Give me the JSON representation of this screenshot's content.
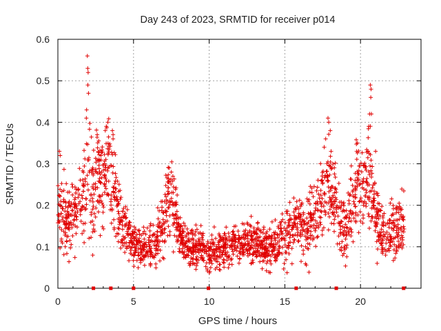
{
  "chart_data": {
    "type": "scatter",
    "title": "Day 243 of 2023, SRMTID for receiver p014",
    "xlabel": "GPS time / hours",
    "ylabel": "SRMTID / TECUs",
    "xlim": [
      0,
      24
    ],
    "ylim": [
      0,
      0.6
    ],
    "xticks": [
      0,
      5,
      10,
      15,
      20
    ],
    "xtick_labels": [
      "0",
      "5",
      "10",
      "15",
      "20"
    ],
    "yticks": [
      0,
      0.1,
      0.2,
      0.3,
      0.4,
      0.5,
      0.6
    ],
    "ytick_labels": [
      "0",
      "0.1",
      "0.2",
      "0.3",
      "0.4",
      "0.5",
      "0.6"
    ],
    "grid": true,
    "marker": "+",
    "color": "#e00000",
    "gap_markers_x": [
      2.35,
      3.5,
      5.0,
      9.95,
      15.75,
      18.4,
      22.85
    ],
    "envelope": {
      "x": [
        0,
        0.3,
        0.6,
        1.0,
        1.5,
        1.8,
        2.0,
        2.3,
        2.6,
        3.0,
        3.3,
        3.6,
        4.0,
        4.5,
        5.0,
        5.5,
        6.0,
        6.5,
        7.0,
        7.3,
        7.6,
        8.0,
        8.5,
        9.0,
        9.5,
        10.0,
        10.5,
        11.0,
        11.5,
        12.0,
        12.5,
        13.0,
        13.5,
        14.0,
        14.5,
        15.0,
        15.5,
        16.0,
        16.5,
        17.0,
        17.5,
        17.8,
        18.2,
        18.6,
        19.0,
        19.5,
        19.8,
        20.2,
        20.6,
        21.0,
        21.4,
        21.8,
        22.2,
        22.6,
        22.9
      ],
      "center": [
        0.19,
        0.17,
        0.15,
        0.19,
        0.2,
        0.22,
        0.27,
        0.2,
        0.28,
        0.26,
        0.3,
        0.26,
        0.17,
        0.14,
        0.11,
        0.1,
        0.1,
        0.11,
        0.16,
        0.22,
        0.2,
        0.13,
        0.11,
        0.1,
        0.1,
        0.09,
        0.09,
        0.09,
        0.1,
        0.11,
        0.11,
        0.12,
        0.1,
        0.1,
        0.11,
        0.12,
        0.14,
        0.15,
        0.14,
        0.17,
        0.22,
        0.27,
        0.25,
        0.16,
        0.14,
        0.2,
        0.24,
        0.25,
        0.27,
        0.18,
        0.13,
        0.14,
        0.14,
        0.16,
        0.16
      ],
      "spread": [
        0.05,
        0.06,
        0.05,
        0.06,
        0.06,
        0.08,
        0.1,
        0.07,
        0.08,
        0.07,
        0.07,
        0.07,
        0.05,
        0.04,
        0.03,
        0.03,
        0.03,
        0.03,
        0.05,
        0.05,
        0.05,
        0.03,
        0.03,
        0.03,
        0.03,
        0.03,
        0.03,
        0.03,
        0.03,
        0.03,
        0.03,
        0.03,
        0.03,
        0.03,
        0.03,
        0.04,
        0.05,
        0.05,
        0.05,
        0.05,
        0.06,
        0.07,
        0.07,
        0.05,
        0.05,
        0.06,
        0.06,
        0.06,
        0.07,
        0.05,
        0.04,
        0.04,
        0.04,
        0.05,
        0.05
      ]
    },
    "outliers": [
      {
        "x": 1.95,
        "y": 0.56
      },
      {
        "x": 1.97,
        "y": 0.53
      },
      {
        "x": 2.0,
        "y": 0.52
      },
      {
        "x": 1.98,
        "y": 0.49
      },
      {
        "x": 2.02,
        "y": 0.47
      },
      {
        "x": 1.9,
        "y": 0.43
      },
      {
        "x": 1.88,
        "y": 0.41
      },
      {
        "x": 3.2,
        "y": 0.39
      },
      {
        "x": 3.3,
        "y": 0.4
      },
      {
        "x": 3.6,
        "y": 0.38
      },
      {
        "x": 3.65,
        "y": 0.36
      },
      {
        "x": 2.6,
        "y": 0.37
      },
      {
        "x": 7.35,
        "y": 0.29
      },
      {
        "x": 7.5,
        "y": 0.28
      },
      {
        "x": 7.6,
        "y": 0.27
      },
      {
        "x": 17.85,
        "y": 0.41
      },
      {
        "x": 17.9,
        "y": 0.4
      },
      {
        "x": 17.7,
        "y": 0.36
      },
      {
        "x": 17.6,
        "y": 0.34
      },
      {
        "x": 18.0,
        "y": 0.38
      },
      {
        "x": 20.65,
        "y": 0.49
      },
      {
        "x": 20.7,
        "y": 0.48
      },
      {
        "x": 20.68,
        "y": 0.46
      },
      {
        "x": 20.6,
        "y": 0.42
      },
      {
        "x": 20.72,
        "y": 0.42
      },
      {
        "x": 20.55,
        "y": 0.39
      },
      {
        "x": 19.8,
        "y": 0.35
      },
      {
        "x": 19.75,
        "y": 0.33
      },
      {
        "x": 21.0,
        "y": 0.33
      },
      {
        "x": 0.1,
        "y": 0.33
      },
      {
        "x": 0.15,
        "y": 0.32
      },
      {
        "x": 21.1,
        "y": 0.06
      }
    ]
  }
}
